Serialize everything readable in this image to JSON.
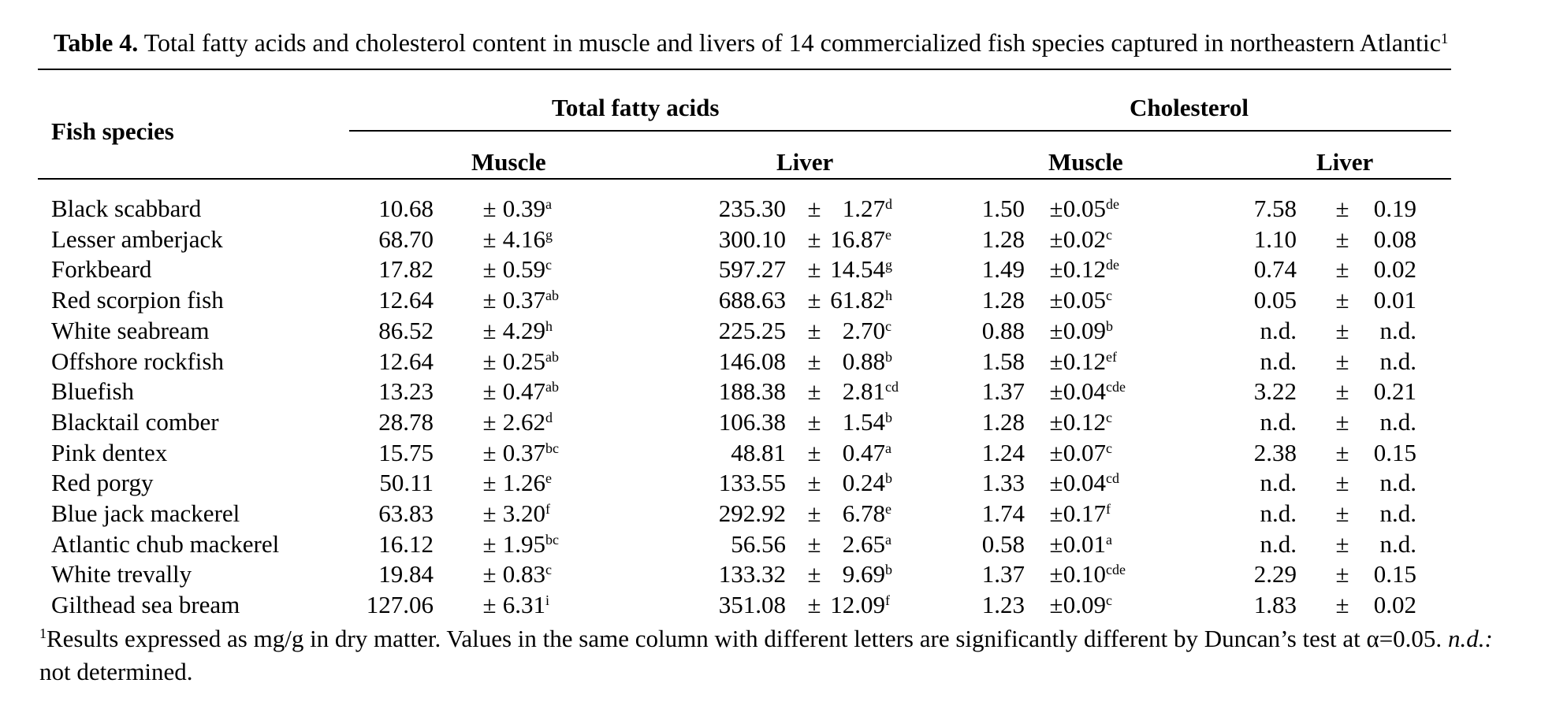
{
  "caption": {
    "label": "Table 4.",
    "text": "Total fatty acids and cholesterol content in muscle and livers of 14 commercialized fish species captured in northeastern Atlantic",
    "note_marker": "1"
  },
  "headers": {
    "species": "Fish species",
    "group_tfa": "Total fatty acids",
    "group_chol": "Cholesterol",
    "muscle": "Muscle",
    "liver": "Liver"
  },
  "pm": "±",
  "rows": [
    {
      "species": "Black scabbard",
      "tfa_m": "10.68",
      "tfa_m_sd": "0.39",
      "tfa_m_l": "a",
      "tfa_l": "235.30",
      "tfa_l_sd": "1.27",
      "tfa_l_l": "d",
      "ch_m": "1.50",
      "ch_m_sd": "0.05",
      "ch_m_l": "de",
      "ch_l": "7.58",
      "ch_l_sd": "0.19"
    },
    {
      "species": "Lesser amberjack",
      "tfa_m": "68.70",
      "tfa_m_sd": "4.16",
      "tfa_m_l": "g",
      "tfa_l": "300.10",
      "tfa_l_sd": "16.87",
      "tfa_l_l": "e",
      "ch_m": "1.28",
      "ch_m_sd": "0.02",
      "ch_m_l": "c",
      "ch_l": "1.10",
      "ch_l_sd": "0.08"
    },
    {
      "species": "Forkbeard",
      "tfa_m": "17.82",
      "tfa_m_sd": "0.59",
      "tfa_m_l": "c",
      "tfa_l": "597.27",
      "tfa_l_sd": "14.54",
      "tfa_l_l": "g",
      "ch_m": "1.49",
      "ch_m_sd": "0.12",
      "ch_m_l": "de",
      "ch_l": "0.74",
      "ch_l_sd": "0.02"
    },
    {
      "species": "Red scorpion fish",
      "tfa_m": "12.64",
      "tfa_m_sd": "0.37",
      "tfa_m_l": "ab",
      "tfa_l": "688.63",
      "tfa_l_sd": "61.82",
      "tfa_l_l": "h",
      "ch_m": "1.28",
      "ch_m_sd": "0.05",
      "ch_m_l": "c",
      "ch_l": "0.05",
      "ch_l_sd": "0.01"
    },
    {
      "species": "White seabream",
      "tfa_m": "86.52",
      "tfa_m_sd": "4.29",
      "tfa_m_l": "h",
      "tfa_l": "225.25",
      "tfa_l_sd": "2.70",
      "tfa_l_l": "c",
      "ch_m": "0.88",
      "ch_m_sd": "0.09",
      "ch_m_l": "b",
      "ch_l": "n.d.",
      "ch_l_sd": "n.d."
    },
    {
      "species": "Offshore rockfish",
      "tfa_m": "12.64",
      "tfa_m_sd": "0.25",
      "tfa_m_l": "ab",
      "tfa_l": "146.08",
      "tfa_l_sd": "0.88",
      "tfa_l_l": "b",
      "ch_m": "1.58",
      "ch_m_sd": "0.12",
      "ch_m_l": "ef",
      "ch_l": "n.d.",
      "ch_l_sd": "n.d."
    },
    {
      "species": "Bluefish",
      "tfa_m": "13.23",
      "tfa_m_sd": "0.47",
      "tfa_m_l": "ab",
      "tfa_l": "188.38",
      "tfa_l_sd": "2.81",
      "tfa_l_l": "cd",
      "ch_m": "1.37",
      "ch_m_sd": "0.04",
      "ch_m_l": "cde",
      "ch_l": "3.22",
      "ch_l_sd": "0.21"
    },
    {
      "species": "Blacktail comber",
      "tfa_m": "28.78",
      "tfa_m_sd": "2.62",
      "tfa_m_l": "d",
      "tfa_l": "106.38",
      "tfa_l_sd": "1.54",
      "tfa_l_l": "b",
      "ch_m": "1.28",
      "ch_m_sd": "0.12",
      "ch_m_l": "c",
      "ch_l": "n.d.",
      "ch_l_sd": "n.d."
    },
    {
      "species": "Pink dentex",
      "tfa_m": "15.75",
      "tfa_m_sd": "0.37",
      "tfa_m_l": "bc",
      "tfa_l": "48.81",
      "tfa_l_sd": "0.47",
      "tfa_l_l": "a",
      "ch_m": "1.24",
      "ch_m_sd": "0.07",
      "ch_m_l": "c",
      "ch_l": "2.38",
      "ch_l_sd": "0.15"
    },
    {
      "species": "Red porgy",
      "tfa_m": "50.11",
      "tfa_m_sd": "1.26",
      "tfa_m_l": "e",
      "tfa_l": "133.55",
      "tfa_l_sd": "0.24",
      "tfa_l_l": "b",
      "ch_m": "1.33",
      "ch_m_sd": "0.04",
      "ch_m_l": "cd",
      "ch_l": "n.d.",
      "ch_l_sd": "n.d."
    },
    {
      "species": "Blue jack mackerel",
      "tfa_m": "63.83",
      "tfa_m_sd": "3.20",
      "tfa_m_l": "f",
      "tfa_l": "292.92",
      "tfa_l_sd": "6.78",
      "tfa_l_l": "e",
      "ch_m": "1.74",
      "ch_m_sd": "0.17",
      "ch_m_l": "f",
      "ch_l": "n.d.",
      "ch_l_sd": "n.d."
    },
    {
      "species": "Atlantic chub mackerel",
      "tfa_m": "16.12",
      "tfa_m_sd": "1.95",
      "tfa_m_l": "bc",
      "tfa_l": "56.56",
      "tfa_l_sd": "2.65",
      "tfa_l_l": "a",
      "ch_m": "0.58",
      "ch_m_sd": "0.01",
      "ch_m_l": "a",
      "ch_l": "n.d.",
      "ch_l_sd": "n.d."
    },
    {
      "species": "White trevally",
      "tfa_m": "19.84",
      "tfa_m_sd": "0.83",
      "tfa_m_l": "c",
      "tfa_l": "133.32",
      "tfa_l_sd": "9.69",
      "tfa_l_l": "b",
      "ch_m": "1.37",
      "ch_m_sd": "0.10",
      "ch_m_l": "cde",
      "ch_l": "2.29",
      "ch_l_sd": "0.15"
    },
    {
      "species": "Gilthead sea bream",
      "tfa_m": "127.06",
      "tfa_m_sd": "6.31",
      "tfa_m_l": "i",
      "tfa_l": "351.08",
      "tfa_l_sd": "12.09",
      "tfa_l_l": "f",
      "ch_m": "1.23",
      "ch_m_sd": "0.09",
      "ch_m_l": "c",
      "ch_l": "1.83",
      "ch_l_sd": "0.02"
    }
  ],
  "footnote": {
    "marker": "1",
    "text": "Results expressed as mg/g in dry matter. Values in the same column with different letters are significantly different by Duncan’s test at α=0.05.",
    "nd_abbr": "n.d.:",
    "nd_text": "not determined."
  }
}
